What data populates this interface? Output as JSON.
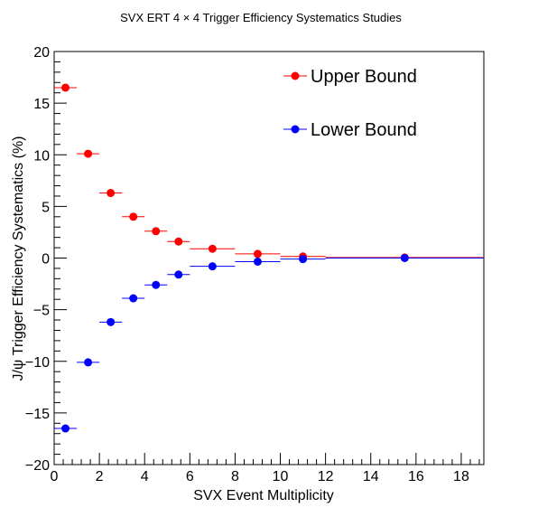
{
  "chart_data": {
    "type": "scatter",
    "title": "SVX ERT 4  × 4 Trigger Efficiency Systematics Studies",
    "xlabel": "SVX Event Multiplicity",
    "ylabel": "J/ψ Trigger Efficiency Systematics (%)",
    "xlim": [
      0,
      19
    ],
    "ylim": [
      -20,
      20
    ],
    "x_ticks": [
      0,
      2,
      4,
      6,
      8,
      10,
      12,
      14,
      16,
      18
    ],
    "y_ticks": [
      -20,
      -15,
      -10,
      -5,
      0,
      5,
      10,
      15,
      20
    ],
    "x_tick_labels": [
      "0",
      "2",
      "4",
      "6",
      "8",
      "10",
      "12",
      "14",
      "16",
      "18"
    ],
    "y_tick_labels": [
      "−20",
      "−15",
      "−10",
      "−5",
      "0",
      "5",
      "10",
      "15",
      "20"
    ],
    "grid": false,
    "legend_position": "top-right",
    "series": [
      {
        "name": "Upper Bound",
        "color": "#ff0000",
        "points": [
          {
            "x": 0.5,
            "y": 16.5,
            "xerr": 0.5
          },
          {
            "x": 1.5,
            "y": 10.1,
            "xerr": 0.5
          },
          {
            "x": 2.5,
            "y": 6.3,
            "xerr": 0.5
          },
          {
            "x": 3.5,
            "y": 4.0,
            "xerr": 0.5
          },
          {
            "x": 4.5,
            "y": 2.6,
            "xerr": 0.5
          },
          {
            "x": 5.5,
            "y": 1.6,
            "xerr": 0.5
          },
          {
            "x": 7.0,
            "y": 0.9,
            "xerr": 1.0
          },
          {
            "x": 9.0,
            "y": 0.4,
            "xerr": 1.0
          },
          {
            "x": 11.0,
            "y": 0.15,
            "xerr": 1.0
          },
          {
            "x": 15.5,
            "y": 0.05,
            "xerr": 3.5
          }
        ]
      },
      {
        "name": "Lower Bound",
        "color": "#0000ff",
        "points": [
          {
            "x": 0.5,
            "y": -16.5,
            "xerr": 0.5
          },
          {
            "x": 1.5,
            "y": -10.1,
            "xerr": 0.5
          },
          {
            "x": 2.5,
            "y": -6.2,
            "xerr": 0.5
          },
          {
            "x": 3.5,
            "y": -3.9,
            "xerr": 0.5
          },
          {
            "x": 4.5,
            "y": -2.6,
            "xerr": 0.5
          },
          {
            "x": 5.5,
            "y": -1.6,
            "xerr": 0.5
          },
          {
            "x": 7.0,
            "y": -0.8,
            "xerr": 1.0
          },
          {
            "x": 9.0,
            "y": -0.35,
            "xerr": 1.0
          },
          {
            "x": 11.0,
            "y": -0.1,
            "xerr": 1.0
          },
          {
            "x": 15.5,
            "y": 0.0,
            "xerr": 3.5
          }
        ]
      }
    ]
  }
}
